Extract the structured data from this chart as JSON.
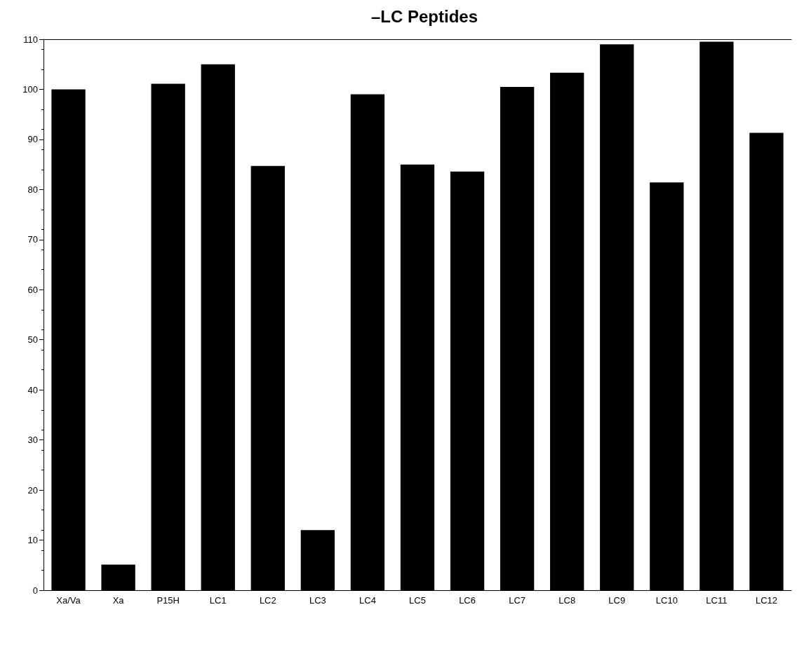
{
  "chart_data": {
    "type": "bar",
    "title": "–LC Peptides",
    "categories": [
      "Xa/Va",
      "Xa",
      "P15H",
      "LC1",
      "LC2",
      "LC3",
      "LC4",
      "LC5",
      "LC6",
      "LC7",
      "LC8",
      "LC9",
      "LC10",
      "LC11",
      "LC12"
    ],
    "values": [
      100,
      5.1,
      101.1,
      105,
      84.7,
      12,
      99,
      85,
      83.6,
      100.5,
      103.3,
      109,
      81.4,
      109.5,
      91.3
    ],
    "color": "#000000",
    "ylim": [
      0,
      110
    ],
    "yticks": [
      0,
      10,
      20,
      30,
      40,
      50,
      60,
      70,
      80,
      90,
      100,
      110
    ],
    "grid": false
  }
}
